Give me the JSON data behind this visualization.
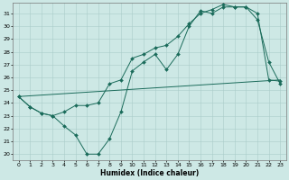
{
  "xlabel": "Humidex (Indice chaleur)",
  "xlim": [
    -0.5,
    23.5
  ],
  "ylim": [
    19.5,
    31.8
  ],
  "xticks": [
    0,
    1,
    2,
    3,
    4,
    5,
    6,
    7,
    8,
    9,
    10,
    11,
    12,
    13,
    14,
    15,
    16,
    17,
    18,
    19,
    20,
    21,
    22,
    23
  ],
  "yticks": [
    20,
    21,
    22,
    23,
    24,
    25,
    26,
    27,
    28,
    29,
    30,
    31
  ],
  "background_color": "#cde8e5",
  "grid_color": "#aaccca",
  "line_color": "#1a6b5a",
  "line1_x": [
    0,
    1,
    2,
    3,
    4,
    5,
    6,
    7,
    8,
    9,
    10,
    11,
    12,
    13,
    14,
    15,
    16,
    17,
    18,
    19,
    20,
    21,
    22,
    23
  ],
  "line1_y": [
    24.5,
    23.7,
    23.2,
    23.0,
    22.2,
    21.5,
    20.0,
    20.0,
    21.2,
    23.3,
    26.5,
    27.2,
    27.8,
    26.6,
    27.8,
    30.0,
    31.2,
    31.0,
    31.5,
    31.5,
    31.5,
    30.5,
    27.2,
    25.5
  ],
  "line2_x": [
    0,
    1,
    2,
    3,
    4,
    5,
    6,
    7,
    8,
    9,
    10,
    11,
    12,
    13,
    14,
    15,
    16,
    17,
    18,
    19,
    20,
    21,
    22,
    23
  ],
  "line2_y": [
    24.5,
    23.7,
    23.2,
    23.0,
    23.3,
    23.8,
    23.8,
    24.0,
    25.5,
    25.8,
    27.5,
    27.8,
    28.3,
    28.5,
    29.2,
    30.2,
    31.0,
    31.3,
    31.7,
    31.5,
    31.5,
    31.0,
    25.8,
    25.7
  ],
  "line3_x": [
    0,
    23
  ],
  "line3_y": [
    24.5,
    25.8
  ]
}
